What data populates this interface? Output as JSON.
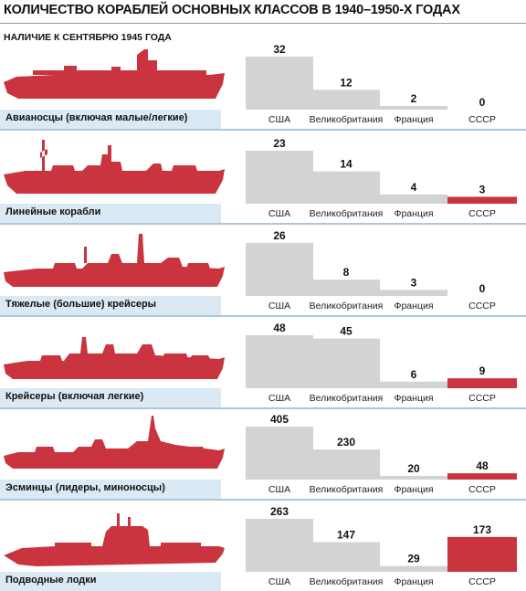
{
  "title": "КОЛИЧЕСТВО КОРАБЛЕЙ ОСНОВНЫХ КЛАССОВ В 1940–1950-Х ГОДАХ",
  "subtitle": "НАЛИЧИЕ К СЕНТЯБРЮ 1945 ГОДА",
  "colors": {
    "bar_default": "#d3d3d3",
    "bar_highlight": "#c9343e",
    "ship": "#c9343e",
    "label_bg": "#dbe9f4",
    "separator": "#8fb4d4"
  },
  "icons": [
    "aircraft-carrier-icon",
    "battleship-icon",
    "heavy-cruiser-icon",
    "cruiser-icon",
    "destroyer-icon",
    "submarine-icon"
  ],
  "chart_data": [
    {
      "type": "bar",
      "category_label": "Авианосцы (включая малые/легкие)",
      "categories": [
        "США",
        "Великобритания",
        "Франция",
        "СССР"
      ],
      "values": [
        32,
        12,
        2,
        0
      ]
    },
    {
      "type": "bar",
      "category_label": "Линейные корабли",
      "categories": [
        "США",
        "Великобритания",
        "Франция",
        "СССР"
      ],
      "values": [
        23,
        14,
        4,
        3
      ]
    },
    {
      "type": "bar",
      "category_label": "Тяжелые (большие) крейсеры",
      "categories": [
        "США",
        "Великобритания",
        "Франция",
        "СССР"
      ],
      "values": [
        26,
        8,
        3,
        0
      ]
    },
    {
      "type": "bar",
      "category_label": "Крейсеры (включая легкие)",
      "categories": [
        "США",
        "Великобритания",
        "Франция",
        "СССР"
      ],
      "values": [
        48,
        45,
        6,
        9
      ]
    },
    {
      "type": "bar",
      "category_label": "Эсминцы (лидеры, миноносцы)",
      "categories": [
        "США",
        "Великобритания",
        "Франция",
        "СССР"
      ],
      "values": [
        405,
        230,
        20,
        48
      ]
    },
    {
      "type": "bar",
      "category_label": "Подводные лодки",
      "categories": [
        "США",
        "Великобритания",
        "Франция",
        "СССР"
      ],
      "values": [
        263,
        147,
        29,
        173
      ]
    }
  ]
}
